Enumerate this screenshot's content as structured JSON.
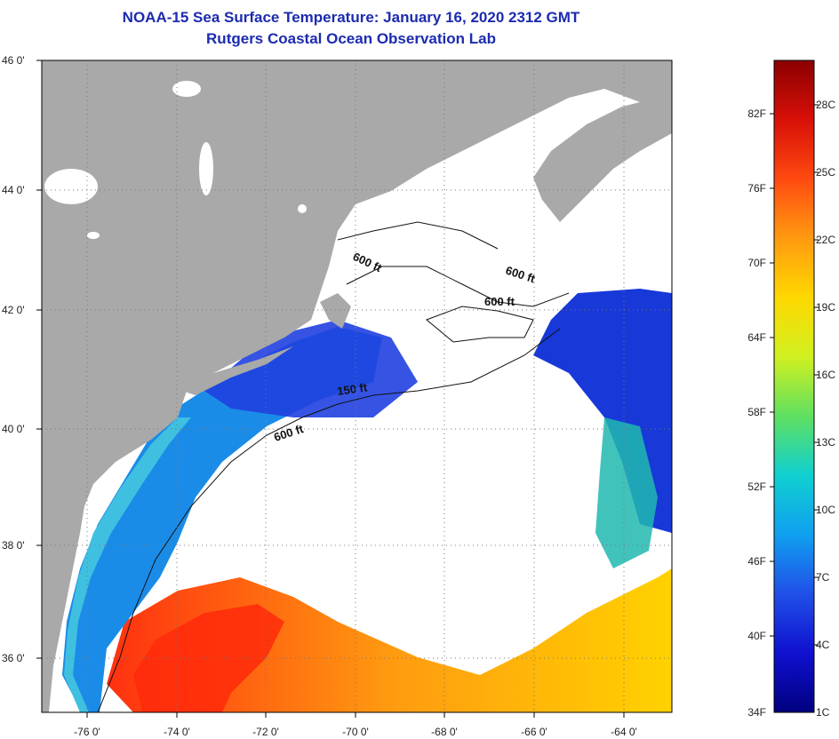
{
  "header": {
    "title": "NOAA-15 Sea Surface Temperature:  January 16, 2020 2312 GMT",
    "subtitle": "Rutgers Coastal Ocean Observation Lab"
  },
  "map": {
    "lon_range": [
      -77,
      -63
    ],
    "lat_range": [
      35,
      46
    ],
    "lon_ticks": [
      "-76 0'",
      "-74 0'",
      "-72 0'",
      "-70 0'",
      "-68 0'",
      "-66 0'",
      "-64 0'"
    ],
    "lat_ticks": [
      "46 0'",
      "44 0'",
      "42 0'",
      "40 0'",
      "38 0'",
      "36 0'"
    ],
    "contour_labels": [
      "600 ft",
      "600 ft",
      "600 ft",
      "150 ft",
      "600 ft"
    ],
    "colors": {
      "land": "#a9a9a9",
      "cloud": "#ffffff",
      "ocean_warm": "#ff3a12",
      "ocean_cold": "#1030d8"
    }
  },
  "colorbar": {
    "fahrenheit": [
      "82F",
      "76F",
      "70F",
      "64F",
      "58F",
      "52F",
      "46F",
      "40F",
      "34F"
    ],
    "celsius": [
      "28C",
      "25C",
      "22C",
      "19C",
      "16C",
      "13C",
      "10C",
      "7C",
      "4C",
      "1C"
    ],
    "stops": [
      "#8b0000",
      "#d81008",
      "#ff4a10",
      "#ff9a10",
      "#ffd800",
      "#d0f020",
      "#60e060",
      "#10d0d0",
      "#10a0f0",
      "#2050e8",
      "#1010d0",
      "#000080"
    ]
  }
}
